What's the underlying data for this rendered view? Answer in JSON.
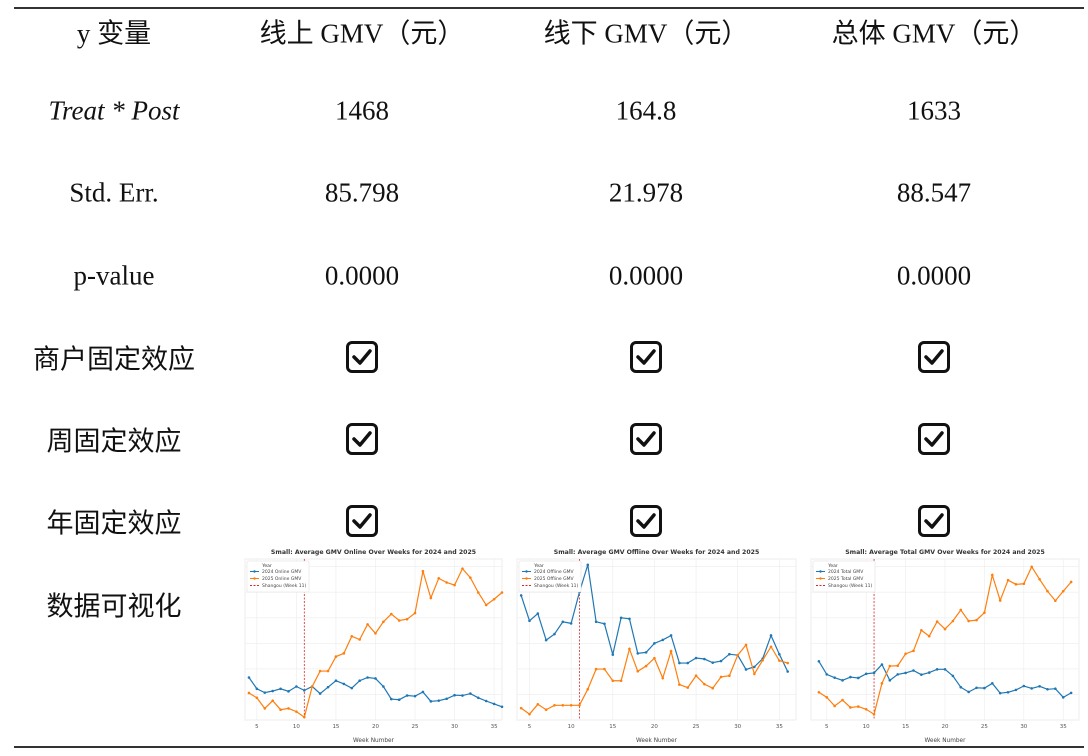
{
  "table": {
    "header": [
      "y 变量",
      "线上 GMV（元）",
      "线下 GMV（元）",
      "总体 GMV（元）"
    ],
    "rows": [
      {
        "label": "Treat * Post",
        "values": [
          "1468",
          "164.8",
          "1633"
        ]
      },
      {
        "label": "Std. Err.",
        "values": [
          "85.798",
          "21.978",
          "88.547"
        ]
      },
      {
        "label": "p-value",
        "values": [
          "0.0000",
          "0.0000",
          "0.0000"
        ]
      },
      {
        "label": "商户固定效应",
        "checked": [
          true,
          true,
          true
        ]
      },
      {
        "label": "周固定效应",
        "checked": [
          true,
          true,
          true
        ]
      },
      {
        "label": "年固定效应",
        "checked": [
          true,
          true,
          true
        ]
      },
      {
        "label": "数据可视化"
      }
    ]
  },
  "icons": {
    "checkbox": "checked-checkbox-icon"
  },
  "colors": {
    "series_2024": "#1f77b4",
    "series_2025": "#ff7f0e",
    "shangou": "#d62728"
  },
  "chart_data": [
    {
      "type": "line",
      "title": "Small: Average GMV Online Over Weeks for 2024 and 2025",
      "xlabel": "Week Number",
      "legend_title": "Year",
      "legend_placement": "top-left",
      "xticks": [
        5,
        10,
        15,
        20,
        25,
        30,
        35
      ],
      "xlim": [
        3.5,
        36
      ],
      "ylim": [
        0,
        5
      ],
      "grid": true,
      "vline": {
        "x": 11,
        "name": "Shangou (Week 11)"
      },
      "x": [
        4,
        5,
        6,
        7,
        8,
        9,
        10,
        11,
        12,
        13,
        14,
        15,
        16,
        17,
        18,
        19,
        20,
        21,
        22,
        23,
        24,
        25,
        26,
        27,
        28,
        29,
        30,
        31,
        32,
        33,
        34,
        35,
        36
      ],
      "series": [
        {
          "name": "2024 Online GMV",
          "values": [
            1.32,
            0.97,
            0.85,
            0.9,
            0.97,
            0.89,
            1.04,
            0.92,
            1.04,
            0.82,
            1.02,
            1.22,
            1.12,
            0.99,
            1.22,
            1.32,
            1.29,
            1.04,
            0.65,
            0.63,
            0.76,
            0.74,
            0.87,
            0.58,
            0.6,
            0.66,
            0.77,
            0.76,
            0.82,
            0.69,
            0.59,
            0.5,
            0.41
          ]
        },
        {
          "name": "2025 Online GMV",
          "values": [
            0.84,
            0.69,
            0.36,
            0.6,
            0.32,
            0.36,
            0.26,
            0.09,
            1.04,
            1.52,
            1.52,
            1.97,
            2.07,
            2.6,
            2.5,
            2.97,
            2.69,
            3.05,
            3.29,
            3.09,
            3.13,
            3.32,
            4.62,
            3.79,
            4.4,
            4.27,
            4.19,
            4.7,
            4.42,
            3.96,
            3.57,
            3.75,
            3.96
          ]
        }
      ]
    },
    {
      "type": "line",
      "title": "Small: Average GMV Offline Over Weeks for 2024 and 2025",
      "xlabel": "Week Number",
      "legend_title": "Year",
      "legend_placement": "top-left",
      "xticks": [
        5,
        10,
        15,
        20,
        25,
        30,
        35
      ],
      "xlim": [
        3.5,
        37
      ],
      "ylim": [
        0,
        8
      ],
      "grid": true,
      "vline": {
        "x": 11,
        "name": "Shangou (Week 11)"
      },
      "x": [
        4,
        5,
        6,
        7,
        8,
        9,
        10,
        11,
        12,
        13,
        14,
        15,
        16,
        17,
        18,
        19,
        20,
        21,
        22,
        23,
        24,
        25,
        26,
        27,
        28,
        29,
        30,
        31,
        32,
        33,
        34,
        35,
        36
      ],
      "series": [
        {
          "name": "2024 Offline GMV",
          "values": [
            6.19,
            4.93,
            5.29,
            3.97,
            4.27,
            4.88,
            4.8,
            6.36,
            7.71,
            4.88,
            4.78,
            3.25,
            5.08,
            5.03,
            3.31,
            3.36,
            3.81,
            3.98,
            4.2,
            2.83,
            2.83,
            3.08,
            3.03,
            2.85,
            2.93,
            3.27,
            3.22,
            2.51,
            2.64,
            3.05,
            4.2,
            3.27,
            2.41
          ]
        },
        {
          "name": "2025 Offline GMV",
          "values": [
            0.59,
            0.29,
            0.78,
            0.51,
            0.73,
            0.73,
            0.73,
            0.73,
            1.53,
            2.53,
            2.53,
            1.95,
            1.95,
            3.53,
            2.42,
            2.68,
            3.07,
            2.08,
            3.42,
            1.76,
            1.61,
            2.2,
            1.78,
            1.58,
            2.14,
            2.2,
            3.22,
            3.73,
            2.29,
            2.97,
            3.64,
            2.95,
            2.83
          ]
        }
      ]
    },
    {
      "type": "line",
      "title": "Small: Average Total GMV Over Weeks for 2024 and 2025",
      "xlabel": "Week Number",
      "legend_title": "Year",
      "legend_placement": "top-left",
      "xticks": [
        5,
        10,
        15,
        20,
        25,
        30,
        35
      ],
      "xlim": [
        3,
        37
      ],
      "ylim": [
        0,
        5.4
      ],
      "grid": true,
      "vline": {
        "x": 11,
        "name": "Shangou (Week 11)"
      },
      "x": [
        4,
        5,
        6,
        7,
        8,
        9,
        10,
        11,
        12,
        13,
        14,
        15,
        16,
        17,
        18,
        19,
        20,
        21,
        22,
        23,
        24,
        25,
        26,
        27,
        28,
        29,
        30,
        31,
        32,
        33,
        34,
        35,
        36
      ],
      "series": [
        {
          "name": "2024 Total GMV",
          "values": [
            1.97,
            1.53,
            1.42,
            1.33,
            1.44,
            1.41,
            1.55,
            1.58,
            1.86,
            1.33,
            1.53,
            1.58,
            1.66,
            1.52,
            1.59,
            1.7,
            1.7,
            1.48,
            1.1,
            0.94,
            1.08,
            1.07,
            1.23,
            0.9,
            0.93,
            1.01,
            1.14,
            1.06,
            1.13,
            1.03,
            1.05,
            0.76,
            0.91
          ]
        },
        {
          "name": "2025 Total GMV",
          "values": [
            0.93,
            0.76,
            0.47,
            0.67,
            0.42,
            0.45,
            0.36,
            0.19,
            1.23,
            1.81,
            1.82,
            2.22,
            2.32,
            3.01,
            2.81,
            3.3,
            3.05,
            3.32,
            3.69,
            3.32,
            3.35,
            3.6,
            4.86,
            4.01,
            4.69,
            4.55,
            4.57,
            5.14,
            4.72,
            4.32,
            4.0,
            4.32,
            4.63
          ]
        }
      ]
    }
  ]
}
